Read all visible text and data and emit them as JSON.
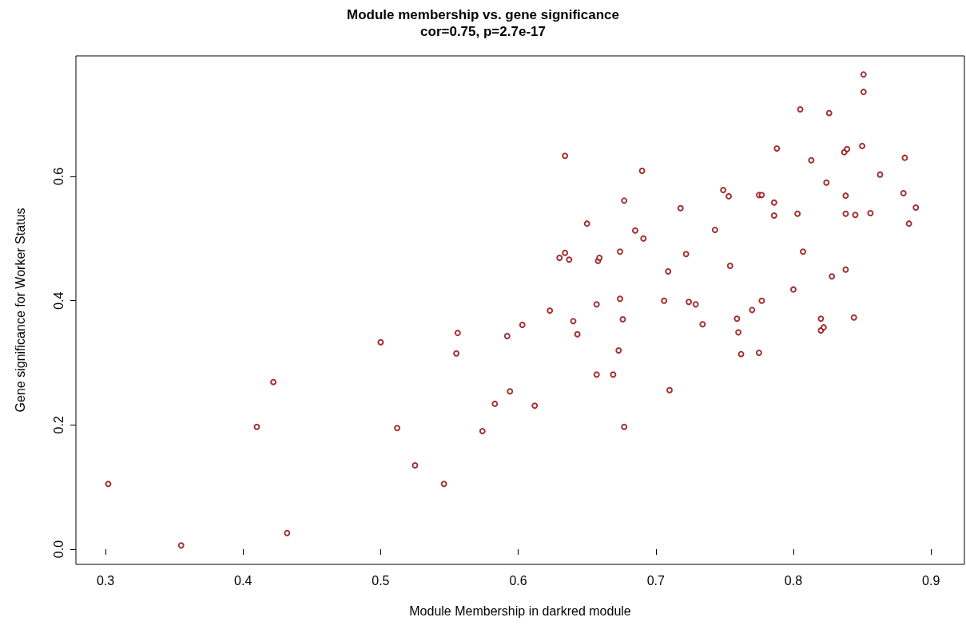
{
  "chart_data": {
    "type": "scatter",
    "title": "Module membership vs. gene significance",
    "subtitle": "cor=0.75, p=2.7e-17",
    "xlabel": "Module Membership in darkred module",
    "ylabel": "Gene significance for Worker Status",
    "marker": "circle",
    "grid": false,
    "xlim": [
      0.2785,
      0.9243
    ],
    "ylim": [
      -0.0244,
      0.794
    ],
    "xticks": [
      0.3,
      0.4,
      0.5,
      0.6,
      0.7,
      0.8,
      0.9
    ],
    "yticks": [
      {
        "value": 0,
        "label": "0.0"
      },
      0.2,
      0.4,
      0.6
    ],
    "series": [
      {
        "color": "#8b0000",
        "x": [
          0.302,
          0.355,
          0.41,
          0.422,
          0.432,
          0.5,
          0.512,
          0.525,
          0.546,
          0.556,
          0.555,
          0.574,
          0.583,
          0.592,
          0.594,
          0.603,
          0.612,
          0.623,
          0.63,
          0.634,
          0.637,
          0.64,
          0.643,
          0.634,
          0.657,
          0.669,
          0.657,
          0.658,
          0.659,
          0.65,
          0.673,
          0.674,
          0.674,
          0.676,
          0.677,
          0.677,
          0.685,
          0.691,
          0.69,
          0.706,
          0.709,
          0.71,
          0.718,
          0.722,
          0.724,
          0.729,
          0.734,
          0.743,
          0.749,
          0.754,
          0.753,
          0.759,
          0.76,
          0.762,
          0.77,
          0.775,
          0.777,
          0.775,
          0.777,
          0.786,
          0.786,
          0.788,
          0.8,
          0.803,
          0.805,
          0.807,
          0.813,
          0.82,
          0.82,
          0.822,
          0.824,
          0.826,
          0.828,
          0.837,
          0.838,
          0.839,
          0.838,
          0.838,
          0.844,
          0.845,
          0.851,
          0.851,
          0.85,
          0.856,
          0.863,
          0.881,
          0.88,
          0.884,
          0.889
        ],
        "values": [
          0.105,
          0.006,
          0.197,
          0.269,
          0.026,
          0.333,
          0.195,
          0.135,
          0.105,
          0.348,
          0.315,
          0.19,
          0.234,
          0.343,
          0.254,
          0.361,
          0.231,
          0.384,
          0.469,
          0.477,
          0.466,
          0.367,
          0.346,
          0.633,
          0.281,
          0.281,
          0.394,
          0.464,
          0.469,
          0.524,
          0.32,
          0.479,
          0.403,
          0.37,
          0.197,
          0.561,
          0.513,
          0.5,
          0.609,
          0.4,
          0.447,
          0.256,
          0.549,
          0.475,
          0.398,
          0.394,
          0.362,
          0.514,
          0.578,
          0.456,
          0.568,
          0.371,
          0.349,
          0.314,
          0.385,
          0.57,
          0.57,
          0.316,
          0.4,
          0.558,
          0.537,
          0.645,
          0.418,
          0.54,
          0.708,
          0.479,
          0.626,
          0.371,
          0.352,
          0.357,
          0.59,
          0.702,
          0.439,
          0.639,
          0.45,
          0.644,
          0.569,
          0.54,
          0.373,
          0.538,
          0.764,
          0.736,
          0.649,
          0.541,
          0.603,
          0.63,
          0.573,
          0.524,
          0.55
        ]
      }
    ]
  }
}
